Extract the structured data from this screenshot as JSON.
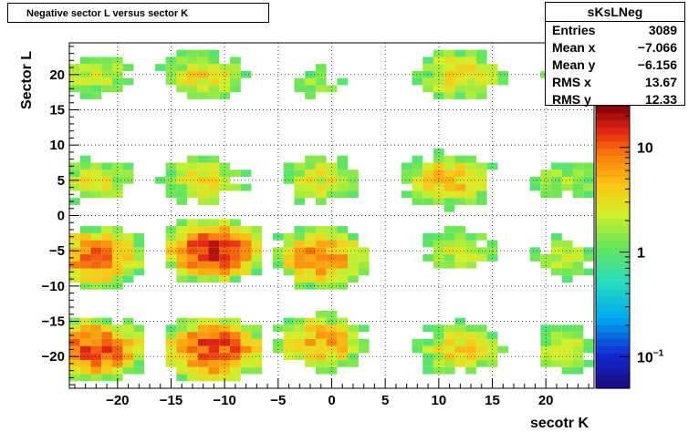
{
  "title": "Negative sector L versus sector K",
  "stats": {
    "name": "sKsLNeg",
    "rows": [
      {
        "label": "Entries",
        "value": "3089"
      },
      {
        "label": "Mean x",
        "value": "−7.066"
      },
      {
        "label": "Mean y",
        "value": "−6.156"
      },
      {
        "label": "RMS x",
        "value": "13.67"
      },
      {
        "label": "RMS y",
        "value": "12.33"
      }
    ]
  },
  "chart_data": {
    "type": "heatmap",
    "title": "Negative sector L versus sector K",
    "xlabel": "secotr K",
    "ylabel": "Sector L",
    "xlim": [
      -24.5,
      24.5
    ],
    "ylim": [
      -24.5,
      24.5
    ],
    "x_ticks": [
      -20,
      -15,
      -10,
      -5,
      0,
      5,
      10,
      15,
      20
    ],
    "y_ticks": [
      -20,
      -15,
      -10,
      -5,
      0,
      5,
      10,
      15,
      20
    ],
    "x_tick_labels": [
      "−20",
      "−15",
      "−10",
      "−5",
      "0",
      "5",
      "10",
      "15",
      "20"
    ],
    "y_tick_labels": [
      "−20",
      "−15",
      "−10",
      "−5",
      "0",
      "5",
      "10",
      "15",
      "20"
    ],
    "grid": true,
    "log_z": true,
    "zlim": [
      0.05,
      25
    ],
    "z_ticks": [
      {
        "value": 0.1,
        "label": "10",
        "sup": "−1"
      },
      {
        "value": 1,
        "label": "1",
        "sup": ""
      },
      {
        "value": 10,
        "label": "10",
        "sup": ""
      }
    ],
    "clusters": [
      {
        "cx": -22,
        "cy": 20,
        "peak": 2.5
      },
      {
        "cx": -12,
        "cy": 20,
        "peak": 3.5
      },
      {
        "cx": -1,
        "cy": 19,
        "peak": 1.5
      },
      {
        "cx": 12,
        "cy": 20,
        "peak": 4
      },
      {
        "cx": 22,
        "cy": 20,
        "peak": 1.5
      },
      {
        "cx": -22,
        "cy": 5,
        "peak": 3
      },
      {
        "cx": -12,
        "cy": 5,
        "peak": 3.5
      },
      {
        "cx": -1,
        "cy": 5,
        "peak": 3
      },
      {
        "cx": 11,
        "cy": 5,
        "peak": 5
      },
      {
        "cx": 22,
        "cy": 5,
        "peak": 2
      },
      {
        "cx": -22,
        "cy": -6,
        "peak": 10
      },
      {
        "cx": -11,
        "cy": -5,
        "peak": 15
      },
      {
        "cx": -1,
        "cy": -6,
        "peak": 8
      },
      {
        "cx": 12,
        "cy": -5,
        "peak": 2.5
      },
      {
        "cx": 22,
        "cy": -6,
        "peak": 2
      },
      {
        "cx": -22,
        "cy": -19,
        "peak": 12
      },
      {
        "cx": -11,
        "cy": -19,
        "peak": 14
      },
      {
        "cx": -1,
        "cy": -18,
        "peak": 6
      },
      {
        "cx": 12,
        "cy": -19,
        "peak": 4
      },
      {
        "cx": 22,
        "cy": -19,
        "peak": 2.5
      }
    ]
  }
}
